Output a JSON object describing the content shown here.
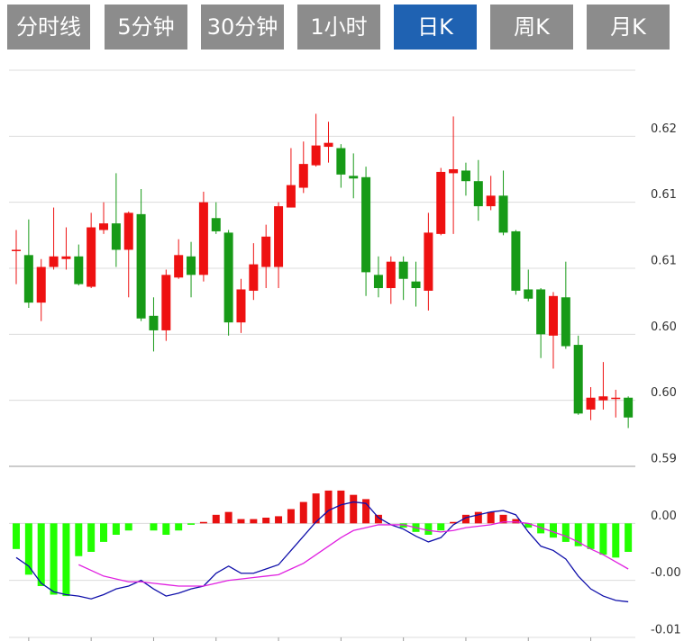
{
  "tabs": [
    "分时线",
    "5分钟",
    "30分钟",
    "1小时",
    "日K",
    "周K",
    "月K"
  ],
  "active_tab": 4,
  "chart_data": [
    {
      "type": "candlestick",
      "up_color": "#ee1111",
      "down_color": "#179a17",
      "grid": true,
      "ylim": [
        0.595,
        0.625
      ],
      "yticks": [
        0.62,
        {
          "value": 0.615,
          "label": "0.61"
        },
        0.61,
        {
          "value": 0.605,
          "label": "0.60"
        },
        {
          "value": 0.6,
          "label": "0.60"
        },
        {
          "value": 0.595,
          "label": "0.59"
        }
      ],
      "open": [
        0.6113,
        0.611,
        0.6074,
        0.6101,
        0.6107,
        0.6109,
        0.6086,
        0.6129,
        0.6134,
        0.6114,
        0.6141,
        0.6064,
        0.6053,
        0.6093,
        0.6109,
        0.6095,
        0.6138,
        0.6127,
        0.6059,
        0.6083,
        0.6101,
        0.6101,
        0.6146,
        0.6161,
        0.6178,
        0.6192,
        0.6191,
        0.617,
        0.6169,
        0.6095,
        0.6085,
        0.6105,
        0.609,
        0.6083,
        0.6126,
        0.6172,
        0.6174,
        0.6166,
        0.6147,
        0.6155,
        0.6128,
        0.6084,
        0.6084,
        0.6049,
        0.6078,
        0.6042,
        0.5993,
        0.6,
        0.6001,
        0.6002
      ],
      "high": [
        0.6129,
        0.6137,
        0.6107,
        0.6146,
        0.6131,
        0.6118,
        0.6142,
        0.615,
        0.6172,
        0.6143,
        0.616,
        0.6078,
        0.6099,
        0.6122,
        0.612,
        0.6158,
        0.615,
        0.6129,
        0.6092,
        0.6119,
        0.6133,
        0.615,
        0.6191,
        0.6196,
        0.6217,
        0.6211,
        0.6194,
        0.6187,
        0.6177,
        0.6109,
        0.6109,
        0.6109,
        0.6105,
        0.6142,
        0.6176,
        0.6215,
        0.618,
        0.6182,
        0.617,
        0.6174,
        0.6129,
        0.6099,
        0.6085,
        0.6082,
        0.6105,
        0.6049,
        0.601,
        0.6029,
        0.6008,
        0.6003
      ],
      "low": [
        0.6088,
        0.607,
        0.606,
        0.6099,
        0.6099,
        0.6087,
        0.6085,
        0.6126,
        0.6101,
        0.6078,
        0.606,
        0.6037,
        0.6045,
        0.6092,
        0.6078,
        0.609,
        0.6126,
        0.6049,
        0.6051,
        0.6076,
        0.6085,
        0.6085,
        0.6146,
        0.6157,
        0.6177,
        0.618,
        0.6161,
        0.6153,
        0.6079,
        0.6078,
        0.6073,
        0.6076,
        0.6071,
        0.6068,
        0.6125,
        0.6126,
        0.6155,
        0.6136,
        0.6144,
        0.6125,
        0.608,
        0.6075,
        0.6032,
        0.6024,
        0.6039,
        0.5989,
        0.5985,
        0.5993,
        0.5987,
        0.5979
      ],
      "close": [
        0.6114,
        0.6074,
        0.6101,
        0.6109,
        0.6109,
        0.6088,
        0.6131,
        0.6134,
        0.6114,
        0.6142,
        0.6062,
        0.6053,
        0.6095,
        0.611,
        0.6095,
        0.615,
        0.6128,
        0.6059,
        0.6084,
        0.6103,
        0.6124,
        0.6147,
        0.6163,
        0.6179,
        0.6193,
        0.6195,
        0.6171,
        0.6168,
        0.6097,
        0.6085,
        0.6105,
        0.6092,
        0.6085,
        0.6127,
        0.6173,
        0.6175,
        0.6166,
        0.6147,
        0.6155,
        0.6127,
        0.6083,
        0.6077,
        0.605,
        0.6079,
        0.6041,
        0.599,
        0.6002,
        0.6003,
        0.6002,
        0.5987
      ]
    },
    {
      "type": "macd",
      "up_color": "#e81010",
      "down_color": "#22ff00",
      "grid": true,
      "ylim": [
        -0.008,
        0.004
      ],
      "yticks": [
        {
          "value": 0,
          "label": "0.00"
        },
        {
          "value": -0.004,
          "label": "-0.00"
        },
        {
          "value": -0.008,
          "label": "-0.01"
        }
      ],
      "values": [
        -0.0018,
        -0.0036,
        -0.0044,
        -0.005,
        -0.0051,
        -0.0023,
        -0.002,
        -0.0013,
        -0.0008,
        -0.0005,
        0,
        -0.0005,
        -0.0008,
        -0.0005,
        -0.0001,
        0.0001,
        0.0006,
        0.0008,
        0.0003,
        0.0003,
        0.0004,
        0.0005,
        0.001,
        0.0015,
        0.0021,
        0.0023,
        0.0023,
        0.002,
        0.0017,
        0.0006,
        0,
        -0.0003,
        -0.0006,
        -0.0008,
        -0.0005,
        0.0001,
        0.0006,
        0.0008,
        0.0008,
        0.0006,
        0.0003,
        -0.0003,
        -0.0007,
        -0.001,
        -0.0013,
        -0.0016,
        -0.0018,
        -0.0022,
        -0.0024,
        -0.002
      ],
      "series": [
        {
          "color": "#1010aa",
          "values": [
            -0.0024,
            -0.003,
            -0.0042,
            -0.0048,
            -0.005,
            -0.0051,
            -0.0053,
            -0.005,
            -0.0046,
            -0.0044,
            -0.004,
            -0.0046,
            -0.0051,
            -0.0049,
            -0.0046,
            -0.0044,
            -0.0035,
            -0.003,
            -0.0035,
            -0.0035,
            -0.0032,
            -0.0029,
            -0.0019,
            -0.0009,
            0.0001,
            0.0009,
            0.0013,
            0.0015,
            0.0014,
            0.0004,
            -0.0001,
            -0.0004,
            -0.0009,
            -0.0013,
            -0.001,
            -0.0001,
            0.0004,
            0.0006,
            0.0008,
            0.0009,
            0.0006,
            -0.0006,
            -0.0016,
            -0.0019,
            -0.0025,
            -0.0037,
            -0.0046,
            -0.0051,
            -0.0054,
            -0.0055
          ]
        },
        {
          "color": "#e020e0",
          "values": [
            null,
            null,
            null,
            null,
            null,
            -0.0029,
            -0.0033,
            -0.0037,
            -0.0039,
            -0.0041,
            -0.0041,
            -0.0042,
            -0.0043,
            -0.0044,
            -0.0044,
            -0.0044,
            -0.0042,
            -0.004,
            -0.0039,
            -0.0038,
            -0.0037,
            -0.0036,
            -0.0032,
            -0.0028,
            -0.0022,
            -0.0016,
            -0.001,
            -0.0005,
            -0.0003,
            -0.0001,
            -0.0001,
            -0.0001,
            -0.0003,
            -0.0005,
            -0.0006,
            -0.0005,
            -0.0003,
            -0.0002,
            -0.0001,
            0.0001,
            0.0001,
            0,
            -0.0003,
            -0.0006,
            -0.0009,
            -0.0013,
            -0.0018,
            -0.0022,
            -0.0027,
            -0.0032
          ]
        }
      ]
    }
  ]
}
